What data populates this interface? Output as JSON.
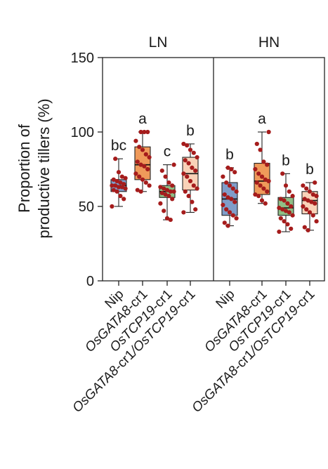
{
  "chart_data": {
    "type": "box",
    "ylabel_lines": [
      "Proportion of",
      "productive tillers (%)"
    ],
    "ylim": [
      0,
      150
    ],
    "yticks": [
      0,
      50,
      100,
      150
    ],
    "panels": [
      "LN",
      "HN"
    ],
    "categories": [
      "Nip",
      "OsGATA8-cr1",
      "OsTCP19-cr1",
      "OsGATA8-cr1/OsTCP19-cr1"
    ],
    "colors": [
      "#7f9dc9",
      "#ef9a5a",
      "#8fbf86",
      "#f9d2b8"
    ],
    "point_color": "#a51c1c",
    "groups": [
      {
        "panel": "LN",
        "category": "Nip",
        "letter": "bc",
        "box": {
          "min": 50,
          "q1": 60,
          "median": 64,
          "q3": 68,
          "max": 82
        },
        "points": [
          50,
          55,
          57,
          60,
          61,
          62,
          63,
          63,
          64,
          64,
          65,
          66,
          67,
          68,
          69,
          70,
          73,
          82
        ]
      },
      {
        "panel": "LN",
        "category": "OsGATA8-cr1",
        "letter": "a",
        "box": {
          "min": 60,
          "q1": 68,
          "median": 78,
          "q3": 90,
          "max": 100
        },
        "points": [
          60,
          61,
          64,
          66,
          68,
          70,
          72,
          75,
          77,
          78,
          80,
          83,
          85,
          88,
          90,
          94,
          100,
          100,
          100
        ]
      },
      {
        "panel": "LN",
        "category": "OsTCP19-cr1",
        "letter": "c",
        "box": {
          "min": 41,
          "q1": 56,
          "median": 60,
          "q3": 64,
          "max": 78
        },
        "points": [
          41,
          42,
          47,
          52,
          55,
          57,
          58,
          59,
          60,
          60,
          61,
          62,
          63,
          64,
          66,
          70,
          74,
          78
        ]
      },
      {
        "panel": "LN",
        "category": "OsGATA8-cr1/OsTCP19-cr1",
        "letter": "b",
        "box": {
          "min": 46,
          "q1": 61,
          "median": 72,
          "q3": 83,
          "max": 92
        },
        "points": [
          46,
          48,
          53,
          57,
          60,
          62,
          64,
          67,
          70,
          72,
          74,
          76,
          79,
          81,
          83,
          86,
          88,
          91,
          92
        ]
      },
      {
        "panel": "HN",
        "category": "Nip",
        "letter": "b",
        "box": {
          "min": 37,
          "q1": 44,
          "median": 55,
          "q3": 66,
          "max": 76
        },
        "points": [
          37,
          39,
          42,
          44,
          46,
          48,
          51,
          53,
          55,
          56,
          58,
          60,
          62,
          64,
          66,
          70,
          73,
          75,
          76
        ]
      },
      {
        "panel": "HN",
        "category": "OsGATA8-cr1",
        "letter": "a",
        "box": {
          "min": 52,
          "q1": 58,
          "median": 67,
          "q3": 79,
          "max": 100
        },
        "points": [
          52,
          54,
          57,
          58,
          60,
          62,
          64,
          66,
          67,
          68,
          70,
          72,
          75,
          78,
          80,
          88,
          92,
          100
        ]
      },
      {
        "panel": "HN",
        "category": "OsTCP19-cr1",
        "letter": "b",
        "box": {
          "min": 33,
          "q1": 44,
          "median": 49,
          "q3": 56,
          "max": 72
        },
        "points": [
          33,
          35,
          38,
          40,
          42,
          44,
          46,
          47,
          48,
          49,
          50,
          52,
          54,
          55,
          57,
          60,
          64,
          72
        ]
      },
      {
        "panel": "HN",
        "category": "OsGATA8-cr1/OsTCP19-cr1",
        "letter": "b",
        "box": {
          "min": 34,
          "q1": 45,
          "median": 54,
          "q3": 60,
          "max": 66
        },
        "points": [
          34,
          36,
          40,
          44,
          46,
          48,
          50,
          52,
          53,
          54,
          55,
          57,
          58,
          60,
          62,
          64,
          66
        ]
      }
    ]
  }
}
